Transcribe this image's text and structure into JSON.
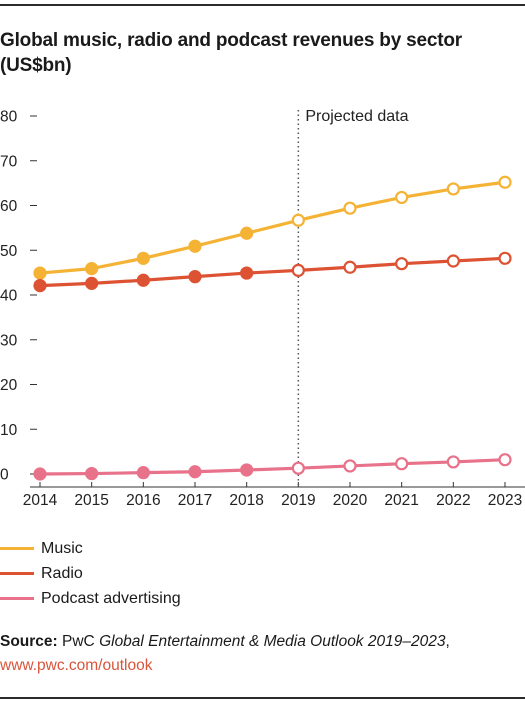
{
  "title": "Global music, radio and podcast revenues by sector (US$bn)",
  "source": {
    "label": "Source:",
    "text_before": " PwC ",
    "publication": "Global Entertainment & Media Outlook 2019–2023",
    "text_after": ",",
    "url": "www.pwc.com/outlook"
  },
  "chart_data": {
    "type": "line",
    "title": "Global music, radio and podcast revenues by sector (US$bn)",
    "x": [
      2014,
      2015,
      2016,
      2017,
      2018,
      2019,
      2020,
      2021,
      2022,
      2023
    ],
    "x_tick_labels": [
      "2014",
      "2015",
      "2016",
      "2017",
      "2018",
      "2019",
      "2020",
      "2021",
      "2022",
      "2023"
    ],
    "ylim": [
      0,
      80
    ],
    "y_ticks": [
      0,
      10,
      20,
      30,
      40,
      50,
      60,
      70,
      80
    ],
    "grid": false,
    "legend_position": "bottom",
    "projection": {
      "start": 2019,
      "label": "Projected data"
    },
    "series": [
      {
        "name": "Music",
        "color": "#f5b335",
        "values": [
          44.9,
          45.9,
          48.2,
          50.9,
          53.8,
          56.7,
          59.4,
          61.8,
          63.7,
          65.2
        ],
        "filled_points": [
          true,
          true,
          true,
          true,
          true,
          false,
          false,
          false,
          false,
          false
        ]
      },
      {
        "name": "Radio",
        "color": "#dd5232",
        "values": [
          42.1,
          42.6,
          43.3,
          44.1,
          44.9,
          45.5,
          46.2,
          47.0,
          47.6,
          48.2
        ],
        "filled_points": [
          true,
          true,
          true,
          true,
          true,
          false,
          false,
          false,
          false,
          false
        ]
      },
      {
        "name": "Podcast advertising",
        "color": "#e8728a",
        "values": [
          0.0,
          0.1,
          0.3,
          0.5,
          0.9,
          1.3,
          1.8,
          2.3,
          2.7,
          3.2
        ],
        "filled_points": [
          true,
          true,
          true,
          true,
          true,
          false,
          false,
          false,
          false,
          false
        ]
      }
    ]
  }
}
